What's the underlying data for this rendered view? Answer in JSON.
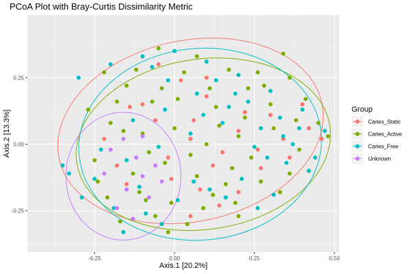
{
  "chart_data": {
    "type": "scatter",
    "title": "PCoA Plot with Bray-Curtis Dissimilarity Metric",
    "xlabel": "Axis.1   [20.2%]",
    "ylabel": "Axis.2   [13.3%]",
    "xlim": [
      -0.46,
      0.515
    ],
    "ylim": [
      -0.405,
      0.485
    ],
    "xticks": [
      {
        "value": -0.25,
        "label": "-0.25"
      },
      {
        "value": 0.0,
        "label": "0.00"
      },
      {
        "value": 0.25,
        "label": "0.25"
      },
      {
        "value": 0.5,
        "label": "0.50"
      }
    ],
    "yticks": [
      {
        "value": -0.25,
        "label": "-0.25"
      },
      {
        "value": 0.0,
        "label": "0.00"
      },
      {
        "value": 0.25,
        "label": "0.25"
      }
    ],
    "grid": true,
    "legend": {
      "title": "Group",
      "position": "right"
    },
    "series": [
      {
        "name": "Caries_Static",
        "color": "#F8766D",
        "ellipse": {
          "cx": 0.05,
          "cy": 0.05,
          "rx": 0.42,
          "ry": 0.34,
          "angle": -12
        },
        "points": [
          [
            -0.1,
            0.15
          ],
          [
            0.02,
            0.24
          ],
          [
            0.1,
            0.18
          ],
          [
            -0.05,
            0.3
          ],
          [
            0.06,
            0.09
          ],
          [
            -0.14,
            0.14
          ],
          [
            0.2,
            0.05
          ],
          [
            0.3,
            0.11
          ],
          [
            0.42,
            0.06
          ],
          [
            -0.22,
            0.02
          ],
          [
            0.12,
            -0.08
          ],
          [
            -0.02,
            -0.05
          ],
          [
            0.26,
            -0.02
          ],
          [
            0.08,
            -0.17
          ],
          [
            0.2,
            -0.18
          ],
          [
            0.05,
            -0.27
          ],
          [
            -0.18,
            -0.08
          ],
          [
            0.36,
            -0.05
          ],
          [
            0.4,
            0.15
          ],
          [
            0.34,
            0.02
          ],
          [
            -0.06,
            0.09
          ],
          [
            0.15,
            -0.03
          ],
          [
            0.1,
            0.25
          ],
          [
            -0.01,
            -0.13
          ],
          [
            0.14,
            -0.23
          ],
          [
            0.27,
            -0.09
          ],
          [
            0.46,
            0.02
          ],
          [
            -0.15,
            -0.15
          ],
          [
            0.22,
            0.12
          ],
          [
            0.05,
            0.02
          ]
        ]
      },
      {
        "name": "Caries_Active",
        "color": "#7CAE00",
        "ellipse": {
          "cx": 0.09,
          "cy": 0.0,
          "rx": 0.4,
          "ry": 0.32,
          "angle": -8
        },
        "points": [
          [
            -0.22,
            0.27
          ],
          [
            -0.15,
            0.22
          ],
          [
            -0.07,
            0.16
          ],
          [
            0.03,
            0.27
          ],
          [
            0.13,
            0.14
          ],
          [
            0.23,
            0.21
          ],
          [
            0.34,
            0.34
          ],
          [
            0.41,
            0.17
          ],
          [
            0.48,
            0.03
          ],
          [
            -0.2,
            0.08
          ],
          [
            -0.1,
            0.04
          ],
          [
            0.0,
            0.06
          ],
          [
            0.1,
            0.0
          ],
          [
            0.2,
            0.03
          ],
          [
            0.31,
            0.06
          ],
          [
            0.39,
            -0.02
          ],
          [
            -0.25,
            -0.06
          ],
          [
            -0.13,
            -0.11
          ],
          [
            -0.03,
            -0.07
          ],
          [
            0.07,
            -0.12
          ],
          [
            0.18,
            -0.09
          ],
          [
            0.27,
            -0.14
          ],
          [
            0.36,
            -0.11
          ],
          [
            -0.21,
            -0.2
          ],
          [
            -0.11,
            -0.18
          ],
          [
            -0.01,
            -0.22
          ],
          [
            0.09,
            -0.24
          ],
          [
            0.19,
            -0.22
          ],
          [
            -0.17,
            -0.29
          ],
          [
            -0.06,
            -0.27
          ],
          [
            0.04,
            -0.3
          ],
          [
            -0.05,
            0.36
          ],
          [
            0.07,
            0.33
          ],
          [
            0.17,
            0.28
          ],
          [
            0.28,
            0.22
          ],
          [
            0.45,
            0.08
          ],
          [
            -0.27,
            0.13
          ],
          [
            -0.16,
            0.05
          ],
          [
            -0.08,
            -0.03
          ],
          [
            0.14,
            0.07
          ],
          [
            0.24,
            -0.05
          ],
          [
            0.33,
            -0.18
          ],
          [
            0.01,
            0.17
          ],
          [
            -0.02,
            -0.33
          ],
          [
            0.12,
            -0.19
          ],
          [
            0.22,
            0.1
          ],
          [
            0.42,
            -0.1
          ],
          [
            -0.24,
            -0.14
          ],
          [
            -0.12,
            0.28
          ],
          [
            0.3,
            0.15
          ],
          [
            0.05,
            -0.04
          ],
          [
            0.16,
            -0.15
          ],
          [
            -0.18,
            0.16
          ],
          [
            0.38,
            0.09
          ],
          [
            -0.09,
            -0.21
          ],
          [
            0.26,
            0.27
          ],
          [
            0.11,
            0.21
          ],
          [
            -0.04,
            0.21
          ],
          [
            0.36,
            0.25
          ],
          [
            0.2,
            -0.27
          ]
        ]
      },
      {
        "name": "Caries_Free",
        "color": "#00BFC4",
        "ellipse": {
          "cx": 0.08,
          "cy": 0.0,
          "rx": 0.38,
          "ry": 0.36,
          "angle": -5
        },
        "points": [
          [
            -0.3,
            0.25
          ],
          [
            -0.2,
            0.3
          ],
          [
            -0.1,
            0.33
          ],
          [
            0.0,
            0.35
          ],
          [
            0.1,
            0.31
          ],
          [
            0.2,
            0.26
          ],
          [
            0.3,
            0.2
          ],
          [
            0.4,
            0.13
          ],
          [
            0.47,
            0.05
          ],
          [
            -0.35,
            -0.08
          ],
          [
            -0.25,
            -0.13
          ],
          [
            -0.15,
            -0.06
          ],
          [
            -0.05,
            -0.01
          ],
          [
            0.05,
            0.04
          ],
          [
            0.15,
            0.08
          ],
          [
            0.25,
            -0.01
          ],
          [
            0.35,
            -0.07
          ],
          [
            0.44,
            -0.05
          ],
          [
            -0.29,
            -0.2
          ],
          [
            -0.19,
            -0.24
          ],
          [
            -0.09,
            -0.26
          ],
          [
            0.01,
            -0.21
          ],
          [
            0.11,
            -0.17
          ],
          [
            0.21,
            -0.13
          ],
          [
            0.31,
            -0.19
          ],
          [
            -0.23,
            -0.02
          ],
          [
            -0.13,
            0.09
          ],
          [
            -0.03,
            0.13
          ],
          [
            0.07,
            0.19
          ],
          [
            0.17,
            0.14
          ],
          [
            0.27,
            0.06
          ],
          [
            0.37,
            0.0
          ],
          [
            -0.07,
            0.29
          ],
          [
            0.13,
            0.24
          ],
          [
            0.23,
            0.16
          ],
          [
            0.33,
            0.1
          ],
          [
            0.42,
            -0.1
          ],
          [
            -0.33,
            -0.11
          ],
          [
            -0.16,
            -0.33
          ],
          [
            -0.04,
            -0.3
          ],
          [
            0.06,
            -0.14
          ],
          [
            0.16,
            -0.2
          ],
          [
            0.26,
            -0.24
          ],
          [
            0.34,
            0.03
          ],
          [
            0.19,
            0.19
          ],
          [
            -0.02,
            0.24
          ],
          [
            -0.11,
            -0.16
          ],
          [
            0.29,
            -0.05
          ],
          [
            0.09,
            0.11
          ],
          [
            0.39,
            0.06
          ]
        ]
      },
      {
        "name": "Unknown",
        "color": "#C77CFF",
        "ellipse": {
          "cx": -0.16,
          "cy": -0.12,
          "rx": 0.18,
          "ry": 0.24,
          "angle": 0
        },
        "points": [
          [
            -0.2,
            -0.02
          ],
          [
            -0.16,
            0.02
          ],
          [
            -0.12,
            -0.05
          ],
          [
            -0.1,
            -0.12
          ],
          [
            -0.15,
            -0.17
          ],
          [
            -0.08,
            -0.2
          ],
          [
            -0.18,
            -0.24
          ],
          [
            -0.13,
            -0.28
          ],
          [
            -0.06,
            -0.08
          ],
          [
            -0.22,
            -0.11
          ],
          [
            -0.1,
            0.03
          ],
          [
            -0.04,
            -0.14
          ]
        ]
      }
    ]
  }
}
